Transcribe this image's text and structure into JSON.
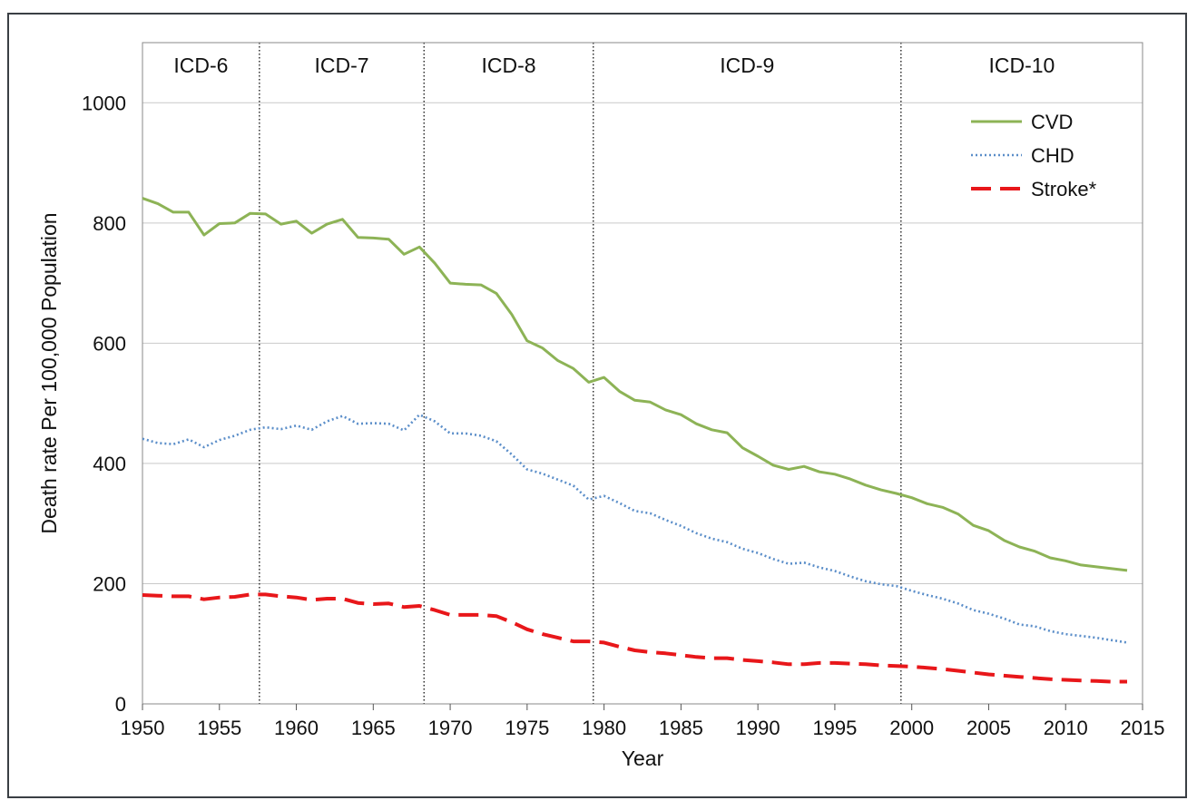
{
  "chart_data": {
    "type": "line",
    "xlabel": "Year",
    "ylabel": "Death rate Per 100,000 Population",
    "xlim": [
      1950,
      2015
    ],
    "ylim": [
      0,
      1100
    ],
    "x_ticks": [
      1950,
      1955,
      1960,
      1965,
      1970,
      1975,
      1980,
      1985,
      1990,
      1995,
      2000,
      2005,
      2010,
      2015
    ],
    "y_ticks": [
      0,
      200,
      400,
      600,
      800,
      1000
    ],
    "grid": "horizontal",
    "legend_position": "top-right",
    "eras": [
      {
        "label": "ICD-6",
        "start": 1950,
        "end": 1957.6
      },
      {
        "label": "ICD-7",
        "start": 1957.6,
        "end": 1968.3
      },
      {
        "label": "ICD-8",
        "start": 1968.3,
        "end": 1979.3
      },
      {
        "label": "ICD-9",
        "start": 1979.3,
        "end": 1999.3
      },
      {
        "label": "ICD-10",
        "start": 1999.3,
        "end": 2015
      }
    ],
    "era_boundaries": [
      1957.6,
      1968.3,
      1979.3,
      1999.3
    ],
    "x": [
      1950,
      1951,
      1952,
      1953,
      1954,
      1955,
      1956,
      1957,
      1958,
      1959,
      1960,
      1961,
      1962,
      1963,
      1964,
      1965,
      1966,
      1967,
      1968,
      1969,
      1970,
      1971,
      1972,
      1973,
      1974,
      1975,
      1976,
      1977,
      1978,
      1979,
      1980,
      1981,
      1982,
      1983,
      1984,
      1985,
      1986,
      1987,
      1988,
      1989,
      1990,
      1991,
      1992,
      1993,
      1994,
      1995,
      1996,
      1997,
      1998,
      1999,
      2000,
      2001,
      2002,
      2003,
      2004,
      2005,
      2006,
      2007,
      2008,
      2009,
      2010,
      2011,
      2012,
      2013,
      2014
    ],
    "series": [
      {
        "name": "CVD",
        "color": "#8db356",
        "style": "solid",
        "values": [
          841,
          832,
          818,
          818,
          780,
          799,
          800,
          816,
          815,
          798,
          803,
          783,
          798,
          806,
          776,
          775,
          773,
          748,
          760,
          733,
          700,
          698,
          697,
          683,
          648,
          604,
          592,
          571,
          558,
          535,
          543,
          520,
          505,
          502,
          489,
          481,
          466,
          456,
          451,
          426,
          412,
          397,
          390,
          395,
          386,
          382,
          374,
          364,
          356,
          350,
          343,
          333,
          327,
          316,
          297,
          288,
          272,
          261,
          254,
          243,
          238,
          231,
          228,
          225,
          222
        ]
      },
      {
        "name": "CHD",
        "color": "#5b8ec9",
        "style": "dotted",
        "values": [
          441,
          434,
          432,
          440,
          427,
          439,
          446,
          456,
          460,
          457,
          463,
          456,
          470,
          479,
          466,
          467,
          466,
          455,
          481,
          470,
          450,
          450,
          446,
          437,
          415,
          390,
          383,
          373,
          363,
          340,
          346,
          334,
          321,
          317,
          306,
          296,
          284,
          275,
          269,
          258,
          251,
          241,
          233,
          235,
          227,
          221,
          212,
          204,
          199,
          196,
          188,
          181,
          175,
          167,
          156,
          150,
          142,
          132,
          129,
          121,
          116,
          113,
          110,
          106,
          102
        ]
      },
      {
        "name": "Stroke*",
        "color": "#e8171a",
        "style": "dashed",
        "values": [
          181,
          180,
          179,
          179,
          174,
          177,
          178,
          182,
          182,
          179,
          177,
          173,
          175,
          175,
          168,
          166,
          167,
          161,
          163,
          156,
          148,
          148,
          148,
          146,
          136,
          124,
          116,
          110,
          104,
          104,
          102,
          95,
          89,
          86,
          84,
          81,
          78,
          76,
          76,
          73,
          71,
          69,
          66,
          66,
          68,
          68,
          67,
          66,
          64,
          63,
          62,
          60,
          58,
          55,
          52,
          49,
          47,
          45,
          43,
          41,
          40,
          39,
          38,
          37,
          37
        ]
      }
    ]
  }
}
